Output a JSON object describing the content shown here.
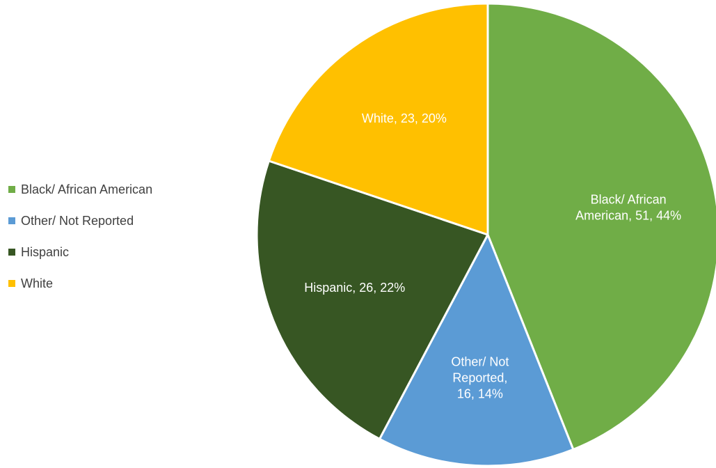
{
  "chart_data": {
    "type": "pie",
    "title": "",
    "legend_position": "left",
    "slices": [
      {
        "label": "Black/ African American",
        "value": 51,
        "percent": 44,
        "color": "#70AD47",
        "label_lines": [
          "Black/ African",
          "American, 51, 44%"
        ]
      },
      {
        "label": "Other/ Not Reported",
        "value": 16,
        "percent": 14,
        "color": "#5B9BD5",
        "label_lines": [
          "Other/ Not",
          "Reported,",
          "16, 14%"
        ]
      },
      {
        "label": "Hispanic",
        "value": 26,
        "percent": 22,
        "color": "#375623",
        "label_lines": [
          "Hispanic, 26, 22%"
        ]
      },
      {
        "label": "White",
        "value": 23,
        "percent": 20,
        "color": "#FFC000",
        "label_lines": [
          "White, 23, 20%"
        ]
      }
    ]
  }
}
